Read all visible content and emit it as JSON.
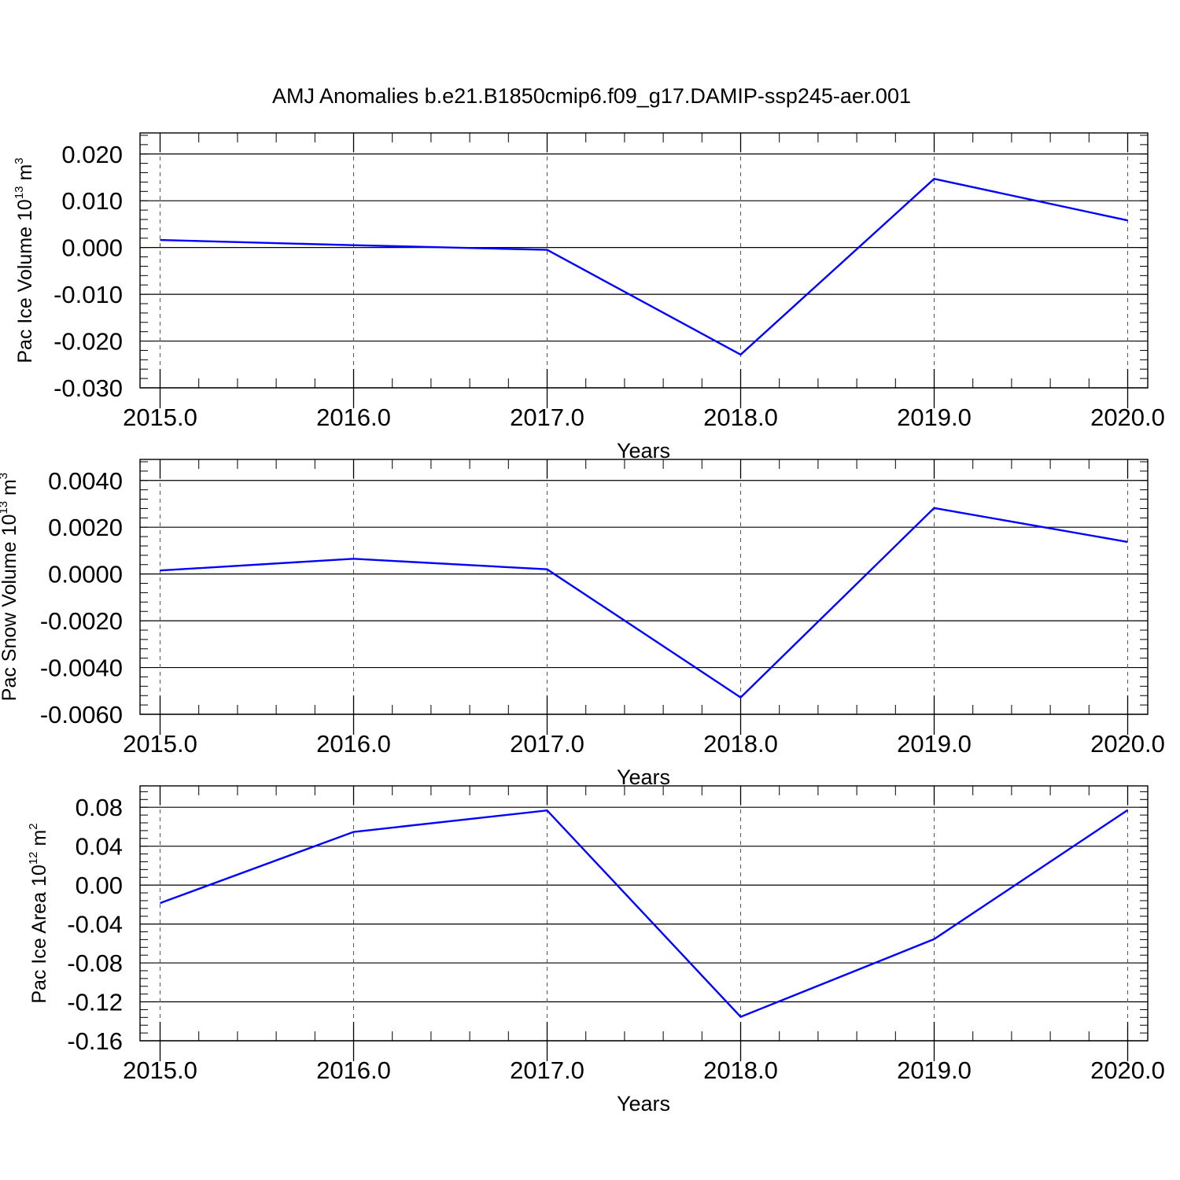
{
  "title": "AMJ Anomalies b.e21.B1850cmip6.f09_g17.DAMIP-ssp245-aer.001",
  "chart_data": [
    {
      "type": "line",
      "ylabel": {
        "text": "Pac Ice Volume 10",
        "exp": "13",
        "unit_tail": " m",
        "unit_exp": "3"
      },
      "xlabel": "Years",
      "x": [
        2015,
        2016,
        2017,
        2018,
        2019,
        2020
      ],
      "xlim": [
        2015,
        2020
      ],
      "xticks": [
        "2015.0",
        "2016.0",
        "2017.0",
        "2018.0",
        "2019.0",
        "2020.0"
      ],
      "ylim": [
        -0.03,
        0.0245
      ],
      "yticks": [
        0.02,
        0.01,
        0.0,
        -0.01,
        -0.02,
        -0.03
      ],
      "ytick_labels": [
        "0.020",
        "0.010",
        "0.000",
        "-0.010",
        "-0.020",
        "-0.030"
      ],
      "series": [
        {
          "values": [
            0.0016,
            0.0005,
            -0.0005,
            -0.0229,
            0.0147,
            0.0058
          ],
          "color": "#0000ff"
        }
      ]
    },
    {
      "type": "line",
      "ylabel": {
        "text": "Pac Snow Volume 10",
        "exp": "13",
        "unit_tail": " m",
        "unit_exp": "3"
      },
      "xlabel": "Years",
      "x": [
        2015,
        2016,
        2017,
        2018,
        2019,
        2020
      ],
      "xlim": [
        2015,
        2020
      ],
      "xticks": [
        "2015.0",
        "2016.0",
        "2017.0",
        "2018.0",
        "2019.0",
        "2020.0"
      ],
      "ylim": [
        -0.006,
        0.0049
      ],
      "yticks": [
        0.004,
        0.002,
        0.0,
        -0.002,
        -0.004,
        -0.006
      ],
      "ytick_labels": [
        "0.0040",
        "0.0020",
        "0.0000",
        "-0.0020",
        "-0.0040",
        "-0.0060"
      ],
      "series": [
        {
          "values": [
            0.00015,
            0.00065,
            0.0002,
            -0.00528,
            0.00282,
            0.00137
          ],
          "color": "#0000ff"
        }
      ]
    },
    {
      "type": "line",
      "ylabel": {
        "text": "Pac Ice Area 10",
        "exp": "12",
        "unit_tail": " m",
        "unit_exp": "2"
      },
      "xlabel": "Years",
      "x": [
        2015,
        2016,
        2017,
        2018,
        2019,
        2020
      ],
      "xlim": [
        2015,
        2020
      ],
      "xticks": [
        "2015.0",
        "2016.0",
        "2017.0",
        "2018.0",
        "2019.0",
        "2020.0"
      ],
      "ylim": [
        -0.16,
        0.102
      ],
      "yticks": [
        0.08,
        0.04,
        0.0,
        -0.04,
        -0.08,
        -0.12,
        -0.16
      ],
      "ytick_labels": [
        "0.08",
        "0.04",
        "0.00",
        "-0.04",
        "-0.08",
        "-0.12",
        "-0.16"
      ],
      "series": [
        {
          "values": [
            -0.0185,
            0.0547,
            0.0768,
            -0.1354,
            -0.0555,
            0.0772
          ],
          "color": "#0000ff"
        }
      ]
    }
  ]
}
